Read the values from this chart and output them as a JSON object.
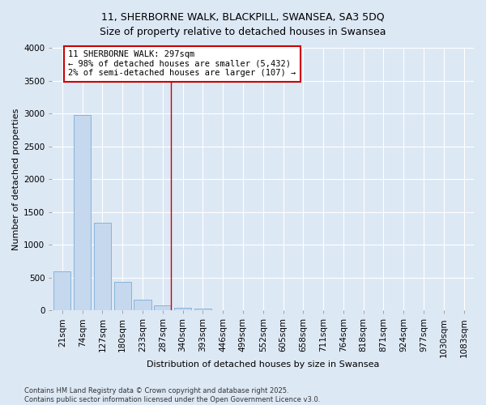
{
  "title": "11, SHERBORNE WALK, BLACKPILL, SWANSEA, SA3 5DQ",
  "subtitle": "Size of property relative to detached houses in Swansea",
  "xlabel": "Distribution of detached houses by size in Swansea",
  "ylabel": "Number of detached properties",
  "bar_color": "#c5d8ee",
  "bar_edge_color": "#7aadd4",
  "background_color": "#dde8f5",
  "grid_color": "#ffffff",
  "categories": [
    "21sqm",
    "74sqm",
    "127sqm",
    "180sqm",
    "233sqm",
    "287sqm",
    "340sqm",
    "393sqm",
    "446sqm",
    "499sqm",
    "552sqm",
    "605sqm",
    "658sqm",
    "711sqm",
    "764sqm",
    "818sqm",
    "871sqm",
    "924sqm",
    "977sqm",
    "1030sqm",
    "1083sqm"
  ],
  "values": [
    590,
    2970,
    1340,
    430,
    160,
    80,
    40,
    30,
    0,
    0,
    0,
    0,
    0,
    0,
    0,
    0,
    0,
    0,
    0,
    0,
    0
  ],
  "ylim": [
    0,
    4000
  ],
  "yticks": [
    0,
    500,
    1000,
    1500,
    2000,
    2500,
    3000,
    3500,
    4000
  ],
  "property_line_x": 5.42,
  "annotation_text": "11 SHERBORNE WALK: 297sqm\n← 98% of detached houses are smaller (5,432)\n2% of semi-detached houses are larger (107) →",
  "annotation_box_facecolor": "#ffffff",
  "annotation_edge_color": "#cc0000",
  "vline_color": "#cc0000",
  "footer": "Contains HM Land Registry data © Crown copyright and database right 2025.\nContains public sector information licensed under the Open Government Licence v3.0.",
  "title_fontsize": 9,
  "subtitle_fontsize": 9,
  "axis_label_fontsize": 8,
  "tick_fontsize": 7.5,
  "annotation_fontsize": 7.5,
  "footer_fontsize": 6
}
